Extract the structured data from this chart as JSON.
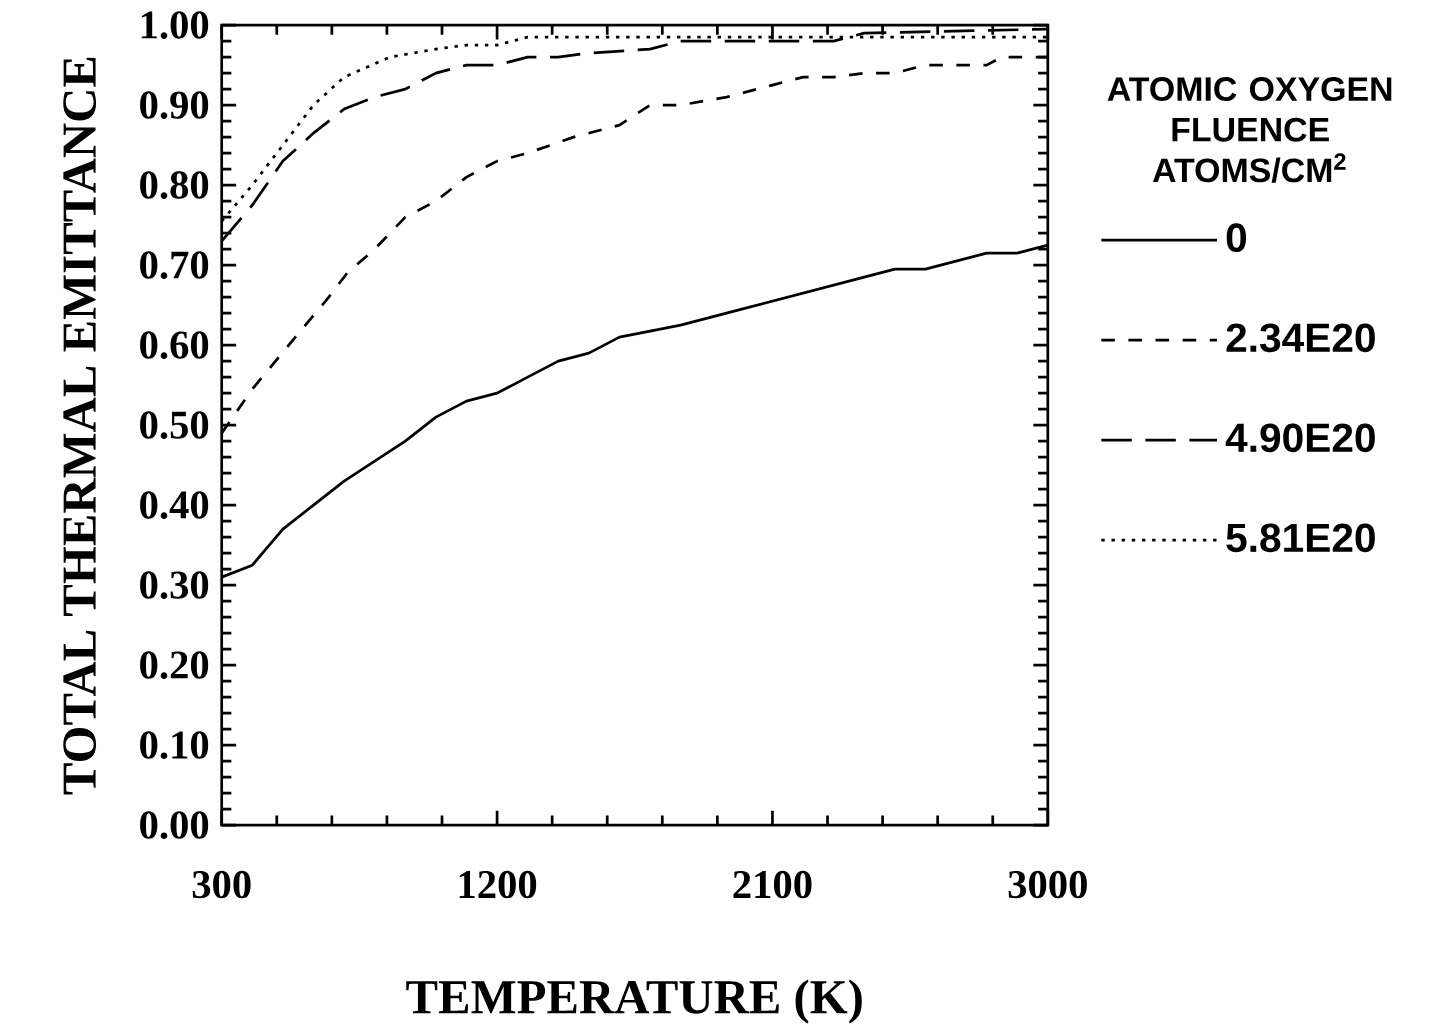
{
  "chart_data": {
    "type": "line",
    "xlabel": "TEMPERATURE (K)",
    "ylabel": "TOTAL THERMAL EMITTANCE",
    "legend_title": "ATOMIC OXYGEN FLUENCE ATOMS/CM$^{2}$",
    "legend": "right",
    "marker": "none",
    "xlim": [
      300,
      3000
    ],
    "xticks": [
      300,
      1200,
      2100,
      3000
    ],
    "ylim": [
      0,
      1
    ],
    "yticks": [
      {
        "value": 0,
        "label": "0.00"
      },
      {
        "value": 0.1,
        "label": "0.10"
      },
      {
        "value": 0.2,
        "label": "0.20"
      },
      {
        "value": 0.3,
        "label": "0.30"
      },
      {
        "value": 0.4,
        "label": "0.40"
      },
      {
        "value": 0.5,
        "label": "0.50"
      },
      {
        "value": 0.6,
        "label": "0.60"
      },
      {
        "value": 0.7,
        "label": "0.70"
      },
      {
        "value": 0.8,
        "label": "0.80"
      },
      {
        "value": 0.9,
        "label": "0.90"
      },
      {
        "value": 1,
        "label": "1.00"
      }
    ],
    "series": [
      {
        "name": "0",
        "color": "#000000",
        "line_style": "solid",
        "x": [
          300,
          400,
          500,
          600,
          700,
          800,
          900,
          1000,
          1100,
          1200,
          1300,
          1400,
          1500,
          1600,
          1800,
          2000,
          2200,
          2400,
          2500,
          2600,
          2700,
          2800,
          2900,
          3000
        ],
        "values": [
          0.31,
          0.325,
          0.37,
          0.4,
          0.43,
          0.455,
          0.48,
          0.51,
          0.53,
          0.54,
          0.56,
          0.58,
          0.59,
          0.61,
          0.625,
          0.645,
          0.665,
          0.685,
          0.695,
          0.695,
          0.705,
          0.715,
          0.715,
          0.725
        ]
      },
      {
        "name": "2.34E20",
        "color": "#000000",
        "line_style": "dashed",
        "x": [
          300,
          400,
          530,
          650,
          710,
          800,
          900,
          1000,
          1100,
          1200,
          1300,
          1450,
          1600,
          1700,
          1800,
          1950,
          2100,
          2200,
          2300,
          2400,
          2500,
          2600,
          2800,
          2850,
          3000
        ],
        "values": [
          0.49,
          0.545,
          0.605,
          0.66,
          0.69,
          0.72,
          0.76,
          0.78,
          0.81,
          0.83,
          0.84,
          0.86,
          0.875,
          0.9,
          0.9,
          0.91,
          0.925,
          0.935,
          0.935,
          0.94,
          0.94,
          0.95,
          0.95,
          0.96,
          0.96
        ]
      },
      {
        "name": "4.90E20",
        "color": "#000000",
        "line_style": "dashed",
        "x": [
          300,
          400,
          500,
          600,
          700,
          800,
          900,
          1000,
          1100,
          1200,
          1300,
          1400,
          1500,
          1700,
          1800,
          2300,
          2400,
          3000
        ],
        "values": [
          0.73,
          0.775,
          0.83,
          0.865,
          0.895,
          0.91,
          0.92,
          0.94,
          0.95,
          0.95,
          0.96,
          0.96,
          0.965,
          0.97,
          0.98,
          0.98,
          0.99,
          0.995
        ]
      },
      {
        "name": "5.81E20",
        "color": "#000000",
        "line_style": "dotted",
        "x": [
          300,
          400,
          500,
          600,
          700,
          850,
          1000,
          1100,
          1200,
          1300,
          3000
        ],
        "values": [
          0.755,
          0.8,
          0.85,
          0.9,
          0.935,
          0.96,
          0.97,
          0.975,
          0.975,
          0.985,
          0.985
        ]
      }
    ]
  }
}
